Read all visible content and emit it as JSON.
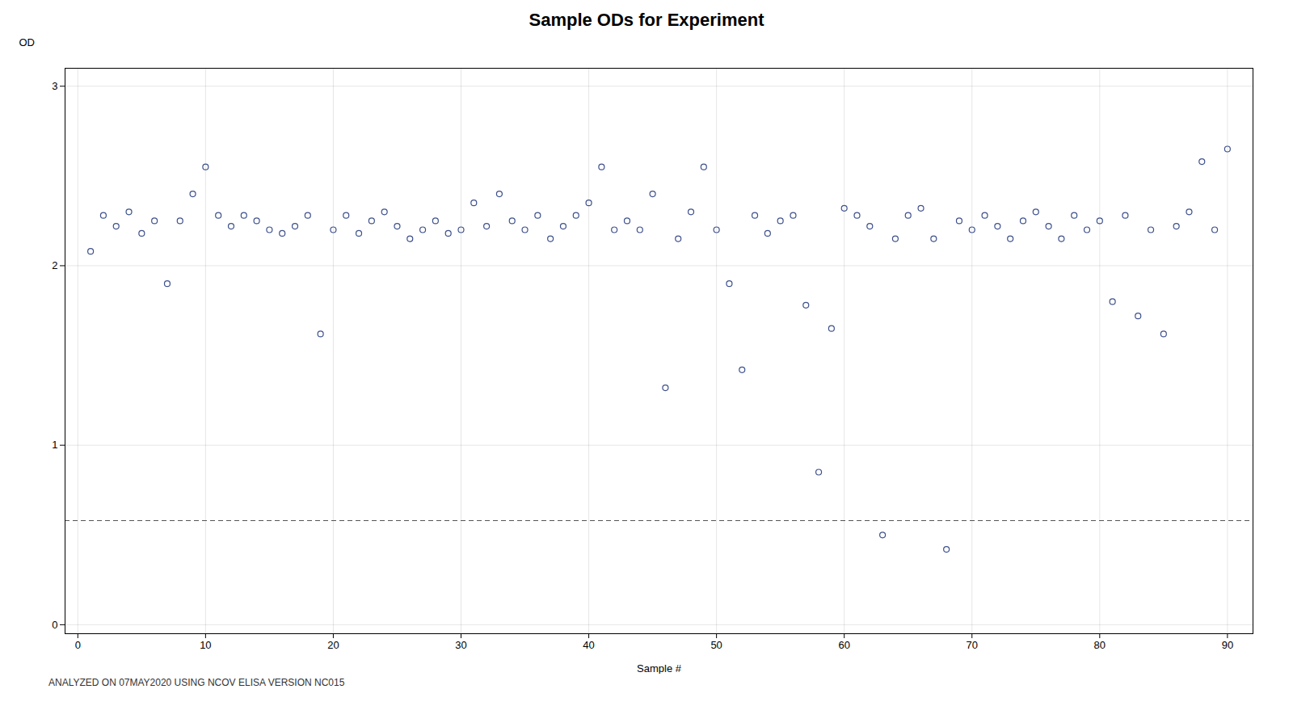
{
  "chart_data": {
    "type": "scatter",
    "title": "Sample ODs for Experiment",
    "xlabel": "Sample #",
    "ylabel": "OD",
    "annotation": "ANALYZED ON 07MAY2020 USING NCOV ELISA VERSION NC015",
    "x": [
      1,
      2,
      3,
      4,
      5,
      6,
      7,
      8,
      9,
      10,
      11,
      12,
      13,
      14,
      15,
      16,
      17,
      18,
      19,
      20,
      21,
      22,
      23,
      24,
      25,
      26,
      27,
      28,
      29,
      30,
      31,
      32,
      33,
      34,
      35,
      36,
      37,
      38,
      39,
      40,
      41,
      42,
      43,
      44,
      45,
      46,
      47,
      48,
      49,
      50,
      51,
      52,
      53,
      54,
      55,
      56,
      57,
      58,
      59,
      60,
      61,
      62,
      63,
      64,
      65,
      66,
      67,
      68,
      69,
      70,
      71,
      72,
      73,
      74,
      75,
      76,
      77,
      78,
      79,
      80,
      81,
      82,
      83,
      84,
      85,
      86,
      87,
      88,
      89,
      90
    ],
    "values": [
      2.08,
      2.28,
      2.22,
      2.3,
      2.18,
      2.25,
      1.9,
      2.25,
      2.4,
      2.55,
      2.28,
      2.22,
      2.28,
      2.25,
      2.2,
      2.18,
      2.22,
      2.28,
      1.62,
      2.2,
      2.28,
      2.18,
      2.25,
      2.3,
      2.22,
      2.15,
      2.2,
      2.25,
      2.18,
      2.2,
      2.35,
      2.22,
      2.4,
      2.25,
      2.2,
      2.28,
      2.15,
      2.22,
      2.28,
      2.35,
      2.55,
      2.2,
      2.25,
      2.2,
      2.4,
      1.32,
      2.15,
      2.3,
      2.55,
      2.2,
      1.9,
      1.42,
      2.28,
      2.18,
      2.25,
      2.28,
      1.78,
      0.85,
      1.65,
      2.32,
      2.28,
      2.22,
      0.5,
      2.15,
      2.28,
      2.32,
      2.15,
      0.42,
      2.25,
      2.2,
      2.28,
      2.22,
      2.15,
      2.25,
      2.3,
      2.22,
      2.15,
      2.28,
      2.2,
      2.25,
      1.8,
      2.28,
      1.72,
      2.2,
      1.62,
      2.22,
      2.3,
      2.58,
      2.2,
      2.65
    ],
    "color": "#3d508c",
    "marker": "open_circle",
    "hlines": [
      {
        "y": 0.58,
        "color": "#555555",
        "line_style": "dashed"
      }
    ],
    "xlim": [
      -1,
      92
    ],
    "ylim": [
      -0.05,
      3.1
    ],
    "xticks": [
      0,
      10,
      20,
      30,
      40,
      50,
      60,
      70,
      80,
      90
    ],
    "yticks": [
      0,
      1,
      2,
      3
    ],
    "grid": true
  }
}
